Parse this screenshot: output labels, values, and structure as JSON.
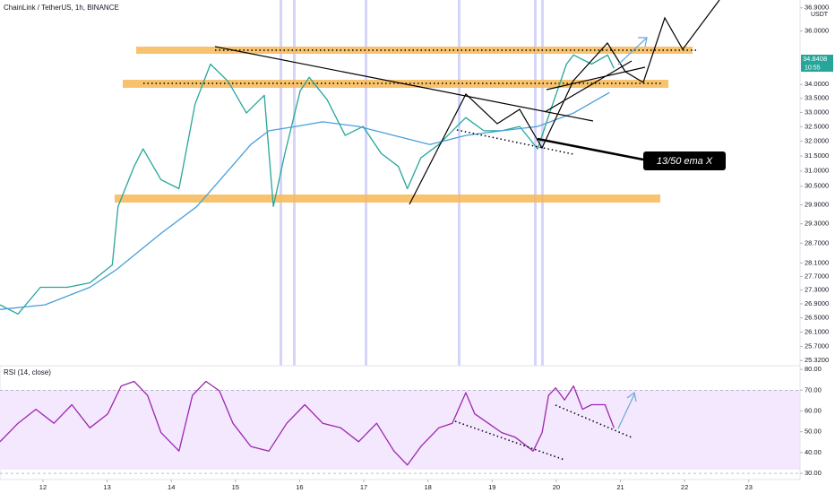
{
  "header": {
    "symbol": "ChainLink / TetherUS, 1h, BINANCE",
    "currency": "USDT",
    "last_price": "34.8408",
    "countdown": "10:55"
  },
  "annotation": "13/50 ema X",
  "chart_data": [
    {
      "type": "line",
      "log_scale": true,
      "xlim": [
        11.33,
        23.8
      ],
      "ylim": [
        25.18,
        37.21
      ],
      "xticks": [
        12,
        13,
        14,
        15,
        16,
        17,
        18,
        19,
        20,
        21,
        22,
        23
      ],
      "yticks": [
        {
          "value": 36.9,
          "label": "36.9000"
        },
        {
          "value": 36,
          "label": "36.0000"
        },
        {
          "value": 34,
          "label": "34.0000"
        },
        {
          "value": 33.5,
          "label": "33.5000"
        },
        {
          "value": 33,
          "label": "33.0000"
        },
        {
          "value": 32.5,
          "label": "32.5000"
        },
        {
          "value": 32,
          "label": "32.0000"
        },
        {
          "value": 31.5,
          "label": "31.5000"
        },
        {
          "value": 31,
          "label": "31.0000"
        },
        {
          "value": 30.5,
          "label": "30.5000"
        },
        {
          "value": 29.9,
          "label": "29.9000"
        },
        {
          "value": 29.3,
          "label": "29.3000"
        },
        {
          "value": 28.7,
          "label": "28.7000"
        },
        {
          "value": 28.1,
          "label": "28.1000"
        },
        {
          "value": 27.7,
          "label": "27.7000"
        },
        {
          "value": 27.3,
          "label": "27.3000"
        },
        {
          "value": 26.9,
          "label": "26.9000"
        },
        {
          "value": 26.5,
          "label": "26.5000"
        },
        {
          "value": 26.1,
          "label": "26.1000"
        },
        {
          "value": 25.7,
          "label": "25.7000"
        },
        {
          "value": 25.32,
          "label": "25.3200"
        }
      ],
      "series": [
        {
          "color": "#26a69a",
          "x": [
            11.33,
            11.61,
            11.96,
            12.38,
            12.73,
            13.08,
            13.17,
            13.42,
            13.56,
            13.84,
            14.12,
            14.37,
            14.61,
            14.89,
            15.17,
            15.45,
            15.59,
            15.77,
            16.01,
            16.15,
            16.43,
            16.71,
            16.99,
            17.27,
            17.54,
            17.68,
            17.89,
            18.17,
            18.45,
            18.59,
            18.87,
            19.15,
            19.43,
            19.71,
            19.92,
            20.16,
            20.27,
            20.55,
            20.8,
            20.9
          ],
          "values": [
            26.87,
            26.61,
            27.38,
            27.38,
            27.51,
            28.04,
            29.85,
            31.15,
            31.74,
            30.71,
            30.42,
            33.29,
            34.75,
            34.1,
            32.98,
            33.61,
            29.85,
            31.59,
            33.77,
            34.26,
            33.45,
            32.2,
            32.51,
            31.59,
            31.15,
            30.42,
            31.44,
            31.89,
            32.51,
            32.82,
            32.36,
            32.36,
            32.51,
            31.74,
            33.13,
            34.75,
            35.09,
            34.75,
            35.09,
            34.59
          ]
        },
        {
          "color": "#4a9fd8",
          "x": [
            11.33,
            12.03,
            12.73,
            13.15,
            13.84,
            14.4,
            14.82,
            15.24,
            15.52,
            15.94,
            16.36,
            16.92,
            17.47,
            18.03,
            18.59,
            19.15,
            19.71,
            20.27,
            20.83
          ],
          "values": [
            26.74,
            26.87,
            27.38,
            27.91,
            29.0,
            29.85,
            30.85,
            31.89,
            32.36,
            32.51,
            32.67,
            32.51,
            32.2,
            31.89,
            32.2,
            32.36,
            32.51,
            32.98,
            33.71
          ]
        }
      ]
    },
    {
      "type": "line",
      "title": "RSI (14, close)",
      "xlim": [
        11.33,
        23.8
      ],
      "ylim": [
        27,
        80.9
      ],
      "yticks": [
        {
          "value": 80,
          "label": "80.00"
        },
        {
          "value": 70,
          "label": "70.00"
        },
        {
          "value": 60,
          "label": "60.00"
        },
        {
          "value": 50,
          "label": "50.00"
        },
        {
          "value": 40,
          "label": "40.00"
        },
        {
          "value": 30,
          "label": "30.00"
        }
      ],
      "series": [
        {
          "color": "#9c27b0",
          "x": [
            11.33,
            11.61,
            11.89,
            12.17,
            12.45,
            12.73,
            13.01,
            13.22,
            13.42,
            13.63,
            13.84,
            14.12,
            14.33,
            14.54,
            14.75,
            14.96,
            15.24,
            15.52,
            15.8,
            16.08,
            16.36,
            16.64,
            16.92,
            17.2,
            17.47,
            17.68,
            17.89,
            18.17,
            18.38,
            18.59,
            18.73,
            18.94,
            19.15,
            19.36,
            19.64,
            19.78,
            19.88,
            19.99,
            20.13,
            20.27,
            20.41,
            20.55,
            20.76,
            20.9
          ],
          "values": [
            45.2,
            54.1,
            60.8,
            54.1,
            63.0,
            51.9,
            58.6,
            72.0,
            74.2,
            67.5,
            49.6,
            40.7,
            67.5,
            74.2,
            69.7,
            54.1,
            42.9,
            40.7,
            54.1,
            63.0,
            54.1,
            51.9,
            45.2,
            54.1,
            40.7,
            34.0,
            42.9,
            51.9,
            54.1,
            68.8,
            58.6,
            54.1,
            49.6,
            47.4,
            40.7,
            49.6,
            67.5,
            71.1,
            65.3,
            72.0,
            60.8,
            63.0,
            63.0,
            51.9
          ]
        }
      ]
    }
  ]
}
